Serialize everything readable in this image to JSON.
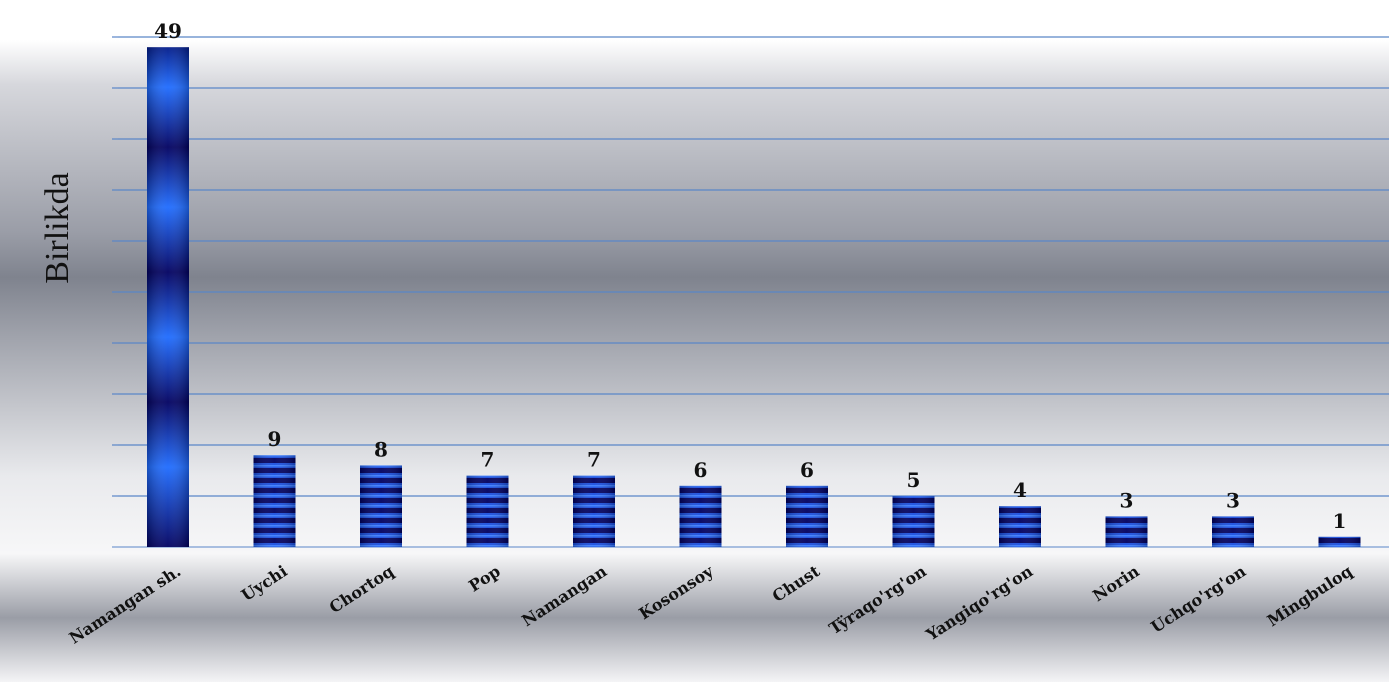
{
  "chart_data": {
    "type": "bar",
    "title": "",
    "xlabel": "",
    "ylabel": "Birlikda",
    "categories": [
      "Namangan sh.",
      "Uychi",
      "Chortoq",
      "Pop",
      "Namangan",
      "Kosonsoy",
      "Chust",
      "Tÿraqo'rg'on",
      "Yangiqo'rg'on",
      "Norin",
      "Uchqo'rg'on",
      "Mingbuloq"
    ],
    "values": [
      49,
      9,
      8,
      7,
      7,
      6,
      6,
      5,
      4,
      3,
      3,
      1
    ],
    "ylim": [
      0,
      50
    ],
    "grid": true,
    "legend": "none",
    "colors": {
      "bar_dark": "#00005e",
      "bar_light": "#1a55ff",
      "grid": "#5a86c8",
      "background_dark": "#8c8f99",
      "background_light": "#ffffff"
    }
  }
}
